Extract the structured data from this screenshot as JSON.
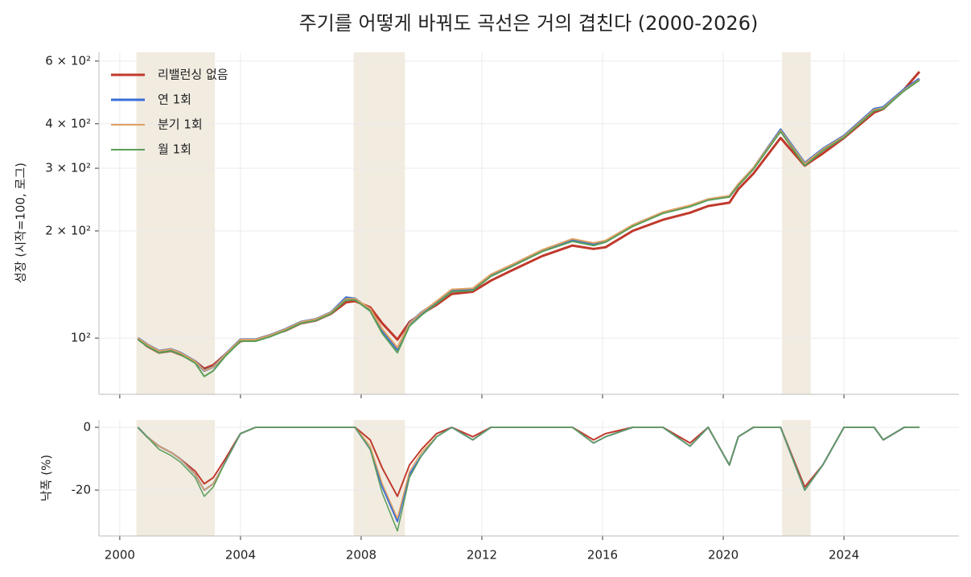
{
  "chart_data": [
    {
      "type": "line",
      "title": "주기를 어떻게 바꿔도 곡선은 거의 겹친다 (2000-2026)",
      "ylabel": "성장 (시작=100, 로그)",
      "log_scale": true,
      "grid": true,
      "legend": "upper left",
      "xlim": [
        1999.31,
        2027.81
      ],
      "ylim": [
        69.5,
        635
      ],
      "xticks": [
        2000,
        2004,
        2008,
        2012,
        2016,
        2020,
        2024
      ],
      "yticks": [
        {
          "value": 100,
          "label": "10²"
        },
        {
          "value": 200,
          "label": "2 × 10²"
        },
        {
          "value": 300,
          "label": "3 × 10²"
        },
        {
          "value": 400,
          "label": "4 × 10²"
        },
        {
          "value": 600,
          "label": "6 × 10²"
        }
      ],
      "shaded_periods": [
        [
          2000.55,
          2003.15
        ],
        [
          2007.75,
          2009.45
        ],
        [
          2021.95,
          2022.9
        ]
      ],
      "shade_color": "#f1ebe0",
      "x": [
        2000.6,
        2000.9,
        2001.3,
        2001.7,
        2002.0,
        2002.5,
        2002.8,
        2003.1,
        2003.5,
        2004.0,
        2004.5,
        2005.0,
        2005.5,
        2006.0,
        2006.5,
        2007.0,
        2007.5,
        2007.8,
        2008.3,
        2008.7,
        2009.2,
        2009.6,
        2010.0,
        2010.5,
        2011.0,
        2011.7,
        2012.3,
        2013.0,
        2014.0,
        2015.0,
        2015.7,
        2016.1,
        2017.0,
        2018.0,
        2018.9,
        2019.5,
        2020.2,
        2020.5,
        2021.0,
        2021.9,
        2022.7,
        2023.3,
        2024.0,
        2025.0,
        2025.3,
        2026.0,
        2026.5
      ],
      "series": [
        {
          "name": "리밸런싱 없음",
          "color": "#c0392b",
          "width": 3,
          "values": [
            100,
            95,
            91,
            92,
            90,
            86,
            82,
            84,
            90,
            98,
            99,
            102,
            105,
            110,
            112,
            117,
            126,
            127,
            122,
            110,
            99,
            111,
            117,
            124,
            133,
            135,
            145,
            155,
            170,
            182,
            178,
            180,
            200,
            215,
            225,
            235,
            240,
            262,
            290,
            365,
            305,
            330,
            365,
            430,
            440,
            500,
            560
          ]
        },
        {
          "name": "연 1회",
          "color": "#3a6fd8",
          "width": 3,
          "values": [
            100,
            96,
            92,
            93,
            91,
            86,
            81,
            83,
            90,
            99,
            99,
            102,
            106,
            111,
            113,
            118,
            130,
            129,
            120,
            105,
            93,
            110,
            118,
            126,
            136,
            137,
            150,
            160,
            176,
            188,
            183,
            187,
            207,
            225,
            235,
            245,
            250,
            270,
            300,
            385,
            310,
            340,
            370,
            440,
            445,
            500,
            535
          ]
        },
        {
          "name": "분기 1회",
          "color": "#e0a060",
          "width": 2,
          "values": [
            100,
            96,
            92,
            93,
            91,
            86,
            81,
            83,
            90,
            99,
            99,
            102,
            106,
            111,
            113,
            118,
            129,
            129,
            121,
            106,
            94,
            110,
            118,
            127,
            137,
            138,
            151,
            161,
            177,
            190,
            185,
            188,
            208,
            226,
            236,
            246,
            251,
            271,
            301,
            383,
            309,
            339,
            369,
            438,
            443,
            498,
            532
          ]
        },
        {
          "name": "월 1회",
          "color": "#5a9e5a",
          "width": 2,
          "values": [
            99,
            95,
            91,
            92,
            90,
            85,
            78,
            81,
            89,
            98,
            98,
            101,
            105,
            110,
            112,
            117,
            128,
            128,
            119,
            103,
            91,
            108,
            116,
            125,
            135,
            136,
            149,
            159,
            175,
            187,
            182,
            186,
            206,
            224,
            234,
            244,
            249,
            268,
            298,
            380,
            305,
            336,
            366,
            435,
            440,
            495,
            530
          ]
        }
      ]
    },
    {
      "type": "line",
      "ylabel": "낙폭 (%)",
      "grid": true,
      "xlim": [
        1999.31,
        2027.81
      ],
      "ylim": [
        -34.6,
        2.3
      ],
      "xticks": [
        2000,
        2004,
        2008,
        2012,
        2016,
        2020,
        2024
      ],
      "yticks": [
        0,
        -20
      ],
      "shaded_periods": [
        [
          2000.55,
          2003.15
        ],
        [
          2007.75,
          2009.45
        ],
        [
          2021.95,
          2022.9
        ]
      ],
      "shade_color": "#f1ebe0",
      "x": [
        2000.6,
        2000.9,
        2001.3,
        2001.7,
        2002.0,
        2002.5,
        2002.8,
        2003.1,
        2003.5,
        2004.0,
        2004.5,
        2005.0,
        2005.5,
        2006.0,
        2006.5,
        2007.0,
        2007.5,
        2007.8,
        2008.3,
        2008.7,
        2009.2,
        2009.6,
        2010.0,
        2010.5,
        2011.0,
        2011.7,
        2012.3,
        2013.0,
        2014.0,
        2015.0,
        2015.7,
        2016.1,
        2017.0,
        2018.0,
        2018.9,
        2019.5,
        2020.2,
        2020.5,
        2021.0,
        2021.9,
        2022.7,
        2023.3,
        2024.0,
        2025.0,
        2025.3,
        2026.0,
        2026.5
      ],
      "series": [
        {
          "name": "리밸런싱 없음",
          "color": "#c0392b",
          "width": 2,
          "values": [
            0,
            -3,
            -6,
            -8,
            -10,
            -14,
            -18,
            -16,
            -10,
            -2,
            0,
            0,
            0,
            0,
            0,
            0,
            0,
            0,
            -4,
            -13,
            -22,
            -12,
            -7,
            -2,
            0,
            -3,
            0,
            0,
            0,
            0,
            -4,
            -2,
            0,
            0,
            -5,
            0,
            -12,
            -3,
            0,
            0,
            -19,
            -12,
            0,
            0,
            -4,
            0,
            0
          ]
        },
        {
          "name": "연 1회",
          "color": "#3a6fd8",
          "width": 2,
          "values": [
            0,
            -3,
            -6,
            -8,
            -10,
            -15,
            -20,
            -18,
            -11,
            -2,
            0,
            0,
            0,
            0,
            0,
            0,
            0,
            0,
            -7,
            -19,
            -30,
            -15,
            -9,
            -3,
            0,
            -4,
            0,
            0,
            0,
            0,
            -5,
            -3,
            0,
            0,
            -6,
            0,
            -12,
            -3,
            0,
            0,
            -20,
            -12,
            0,
            0,
            -4,
            0,
            0
          ]
        },
        {
          "name": "분기 1회",
          "color": "#e0a060",
          "width": 1.5,
          "values": [
            0,
            -3,
            -6,
            -8,
            -10,
            -15,
            -20,
            -18,
            -11,
            -2,
            0,
            0,
            0,
            0,
            0,
            0,
            0,
            0,
            -6,
            -18,
            -29,
            -14,
            -8,
            -3,
            0,
            -4,
            0,
            0,
            0,
            0,
            -5,
            -3,
            0,
            0,
            -6,
            0,
            -12,
            -3,
            0,
            0,
            -20,
            -12,
            0,
            0,
            -4,
            0,
            0
          ]
        },
        {
          "name": "월 1회",
          "color": "#5a9e5a",
          "width": 1.5,
          "values": [
            0,
            -3,
            -7,
            -9,
            -11,
            -16,
            -22,
            -19,
            -11,
            -2,
            0,
            0,
            0,
            0,
            0,
            0,
            0,
            0,
            -7,
            -21,
            -33,
            -16,
            -9,
            -3,
            0,
            -4,
            0,
            0,
            0,
            0,
            -5,
            -3,
            0,
            0,
            -6,
            0,
            -12,
            -3,
            0,
            0,
            -20,
            -12,
            0,
            0,
            -4,
            0,
            0
          ]
        }
      ]
    }
  ]
}
